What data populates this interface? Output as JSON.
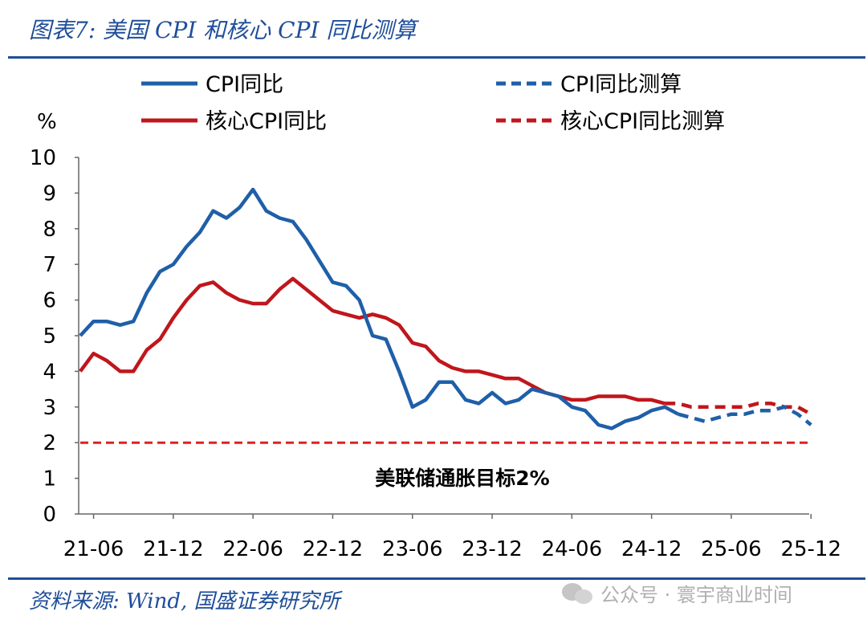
{
  "header": {
    "title": "图表7:  美国 CPI 和核心 CPI 同比测算"
  },
  "footer": {
    "source": "资料来源:  Wind,  国盛证券研究所",
    "watermark": "公众号 · 寰宇商业时间"
  },
  "colors": {
    "accent_blue": "#1f4e99",
    "cpi_blue": "#1f5fa8",
    "core_red": "#c0161c"
  },
  "chart_data": {
    "type": "line",
    "ylabel": "%",
    "ylim": [
      0,
      10
    ],
    "yticks": [
      "0",
      "1",
      "2",
      "3",
      "4",
      "5",
      "6",
      "7",
      "8",
      "9",
      "10"
    ],
    "x_start": "2021-05",
    "xticks": [
      {
        "label": "21-06",
        "idx": 1
      },
      {
        "label": "21-12",
        "idx": 7
      },
      {
        "label": "22-06",
        "idx": 13
      },
      {
        "label": "22-12",
        "idx": 19
      },
      {
        "label": "23-06",
        "idx": 25
      },
      {
        "label": "23-12",
        "idx": 31
      },
      {
        "label": "24-06",
        "idx": 37
      },
      {
        "label": "24-12",
        "idx": 43
      },
      {
        "label": "25-06",
        "idx": 49
      },
      {
        "label": "25-12",
        "idx": 55
      }
    ],
    "legend": [
      {
        "name": "CPI同比",
        "series": "cpi"
      },
      {
        "name": "CPI同比测算",
        "series": "cpi_f"
      },
      {
        "name": "核心CPI同比",
        "series": "core"
      },
      {
        "name": "核心CPI同比测算",
        "series": "core_f"
      }
    ],
    "series": [
      {
        "key": "cpi",
        "name": "CPI同比",
        "start_idx": 0,
        "style": "solid",
        "color": "#1f5fa8",
        "values": [
          5.0,
          5.4,
          5.4,
          5.3,
          5.4,
          6.2,
          6.8,
          7.0,
          7.5,
          7.9,
          8.5,
          8.3,
          8.6,
          9.1,
          8.5,
          8.3,
          8.2,
          7.7,
          7.1,
          6.5,
          6.4,
          6.0,
          5.0,
          4.9,
          4.0,
          3.0,
          3.2,
          3.7,
          3.7,
          3.2,
          3.1,
          3.4,
          3.1,
          3.2,
          3.5,
          3.4,
          3.3,
          3.0,
          2.9,
          2.5,
          2.4,
          2.6,
          2.7,
          2.9,
          3.0,
          2.8
        ]
      },
      {
        "key": "cpi_f",
        "name": "CPI同比测算",
        "start_idx": 45,
        "style": "dashed",
        "color": "#1f5fa8",
        "values": [
          2.8,
          2.7,
          2.6,
          2.7,
          2.8,
          2.8,
          2.9,
          2.9,
          3.0,
          2.8,
          2.5
        ]
      },
      {
        "key": "core",
        "name": "核心CPI同比",
        "start_idx": 0,
        "style": "solid",
        "color": "#c0161c",
        "values": [
          4.0,
          4.5,
          4.3,
          4.0,
          4.0,
          4.6,
          4.9,
          5.5,
          6.0,
          6.4,
          6.5,
          6.2,
          6.0,
          5.9,
          5.9,
          6.3,
          6.6,
          6.3,
          6.0,
          5.7,
          5.6,
          5.5,
          5.6,
          5.5,
          5.3,
          4.8,
          4.7,
          4.3,
          4.1,
          4.0,
          4.0,
          3.9,
          3.8,
          3.8,
          3.6,
          3.4,
          3.3,
          3.2,
          3.2,
          3.3,
          3.3,
          3.3,
          3.2,
          3.2,
          3.1
        ]
      },
      {
        "key": "core_f",
        "name": "核心CPI同比测算",
        "start_idx": 44,
        "style": "dashed",
        "color": "#c0161c",
        "values": [
          3.1,
          3.1,
          3.0,
          3.0,
          3.0,
          3.0,
          3.0,
          3.1,
          3.1,
          3.0,
          3.0,
          2.8
        ]
      },
      {
        "key": "target",
        "name": "美联储通胀目标2%",
        "style": "dashed",
        "color": "#e02020",
        "values": [
          2.0
        ]
      }
    ],
    "annotation": "美联储通胀目标2%"
  }
}
